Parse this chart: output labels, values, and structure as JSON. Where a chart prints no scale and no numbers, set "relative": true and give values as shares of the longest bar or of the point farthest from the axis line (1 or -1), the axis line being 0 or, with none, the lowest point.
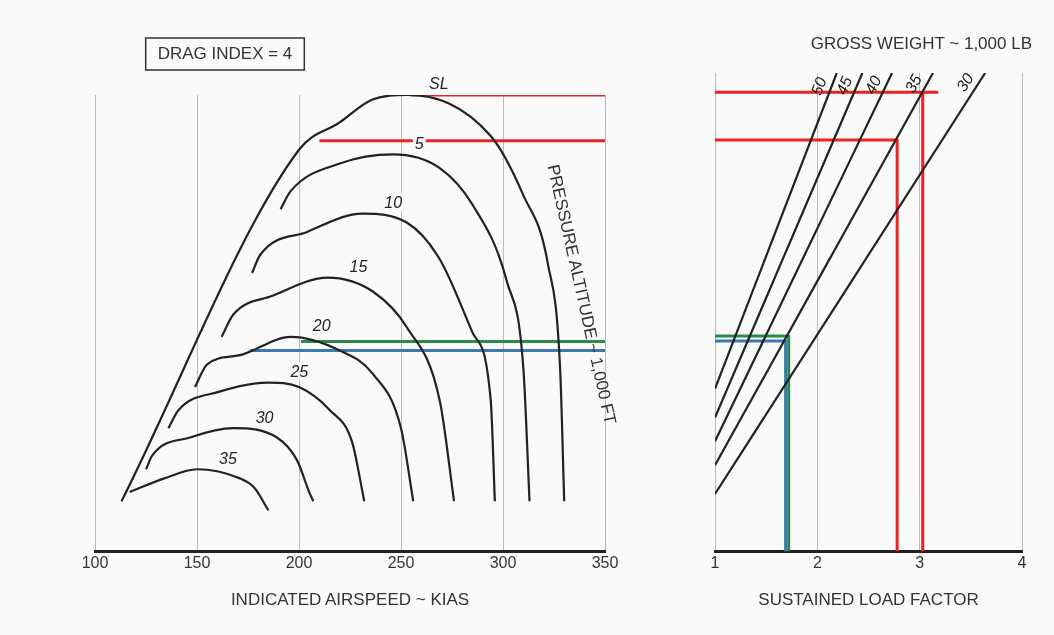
{
  "chart_data": [
    {
      "type": "line",
      "relative": true,
      "xlabel": "INDICATED AIRSPEED ~ KIAS",
      "xlim": [
        100,
        350
      ],
      "xticks": [
        100,
        150,
        200,
        250,
        300,
        350
      ],
      "grid": "x",
      "legend": false,
      "annotations": [
        "DRAG INDEX = 4",
        "PRESSURE ALTITUDE ~ 1,000 FT"
      ],
      "series": [
        {
          "name": "SL",
          "color": "#222222",
          "x": [
            113,
            200,
            220,
            236,
            253,
            294,
            310,
            322,
            328,
            330
          ],
          "values": [
            0.11,
            0.88,
            0.94,
            0.99,
            1.0,
            0.91,
            0.78,
            0.63,
            0.4,
            0.11
          ]
        },
        {
          "name": "5",
          "color": "#222222",
          "x": [
            191,
            196,
            220,
            246,
            269,
            285,
            302,
            310,
            313
          ],
          "values": [
            0.75,
            0.79,
            0.85,
            0.87,
            0.84,
            0.76,
            0.59,
            0.4,
            0.11
          ]
        },
        {
          "name": "10",
          "color": "#222222",
          "x": [
            177,
            181,
            204,
            231,
            253,
            269,
            285,
            294,
            296
          ],
          "values": [
            0.61,
            0.65,
            0.7,
            0.74,
            0.72,
            0.64,
            0.48,
            0.33,
            0.11
          ]
        },
        {
          "name": "15",
          "color": "#222222",
          "x": [
            162,
            168,
            187,
            214,
            236,
            253,
            269,
            276
          ],
          "values": [
            0.47,
            0.52,
            0.56,
            0.6,
            0.57,
            0.49,
            0.33,
            0.11
          ]
        },
        {
          "name": "20",
          "color": "#222222",
          "x": [
            149,
            155,
            171,
            196,
            220,
            236,
            250,
            256
          ],
          "values": [
            0.36,
            0.41,
            0.43,
            0.47,
            0.44,
            0.39,
            0.27,
            0.11
          ]
        },
        {
          "name": "25",
          "color": "#222222",
          "x": [
            136,
            141,
            161,
            185,
            200,
            215,
            226,
            232
          ],
          "values": [
            0.27,
            0.31,
            0.35,
            0.37,
            0.36,
            0.31,
            0.24,
            0.11
          ]
        },
        {
          "name": "30",
          "color": "#222222",
          "x": [
            125,
            128,
            147,
            168,
            189,
            199,
            205,
            207
          ],
          "values": [
            0.18,
            0.21,
            0.25,
            0.27,
            0.25,
            0.2,
            0.13,
            0.11
          ]
        },
        {
          "name": "35",
          "color": "#222222",
          "x": [
            117,
            134,
            150,
            171,
            178,
            185
          ],
          "values": [
            0.13,
            0.16,
            0.18,
            0.16,
            0.14,
            0.09
          ]
        },
        {
          "color": "#ee2222",
          "x": [
            255,
            350
          ],
          "values": [
            1.0,
            1.0
          ]
        },
        {
          "color": "#ee2222",
          "x": [
            210,
            350
          ],
          "values": [
            0.9,
            0.9
          ]
        },
        {
          "color": "#2a8a4a",
          "x": [
            201,
            350
          ],
          "values": [
            0.46,
            0.46
          ]
        },
        {
          "color": "#3a7ab0",
          "x": [
            176,
            350
          ],
          "values": [
            0.44,
            0.44
          ]
        }
      ]
    },
    {
      "type": "line",
      "relative": true,
      "xlabel": "SUSTAINED LOAD FACTOR",
      "xlim": [
        1,
        4
      ],
      "xticks": [
        1,
        2,
        3,
        4
      ],
      "grid": "x",
      "legend": false,
      "annotations": [
        "GROSS WEIGHT ~ 1,000 LB"
      ],
      "series": [
        {
          "name": "50",
          "color": "#222222",
          "x": [
            1,
            2.19
          ],
          "values": [
            0.34,
            1.0
          ]
        },
        {
          "name": "45",
          "color": "#222222",
          "x": [
            1,
            2.44
          ],
          "values": [
            0.28,
            1.0
          ]
        },
        {
          "name": "40",
          "color": "#222222",
          "x": [
            1,
            2.73
          ],
          "values": [
            0.23,
            1.0
          ]
        },
        {
          "name": "35",
          "color": "#222222",
          "x": [
            1,
            3.13
          ],
          "values": [
            0.18,
            1.0
          ]
        },
        {
          "name": "30",
          "color": "#222222",
          "x": [
            1,
            3.64
          ],
          "values": [
            0.12,
            1.0
          ]
        },
        {
          "color": "#ee2222",
          "x": [
            1,
            3.17,
            3.03,
            3.03
          ],
          "values": [
            0.96,
            0.96,
            0.96,
            0
          ]
        },
        {
          "color": "#ee2222",
          "x": [
            1,
            2.78,
            2.78
          ],
          "values": [
            0.86,
            0.86,
            0
          ]
        },
        {
          "color": "#2a8a4a",
          "x": [
            1,
            1.72,
            1.72
          ],
          "values": [
            0.45,
            0.45,
            0
          ]
        },
        {
          "color": "#3a7ab0",
          "x": [
            1,
            1.69,
            1.69
          ],
          "values": [
            0.44,
            0.44,
            0
          ]
        }
      ]
    }
  ]
}
